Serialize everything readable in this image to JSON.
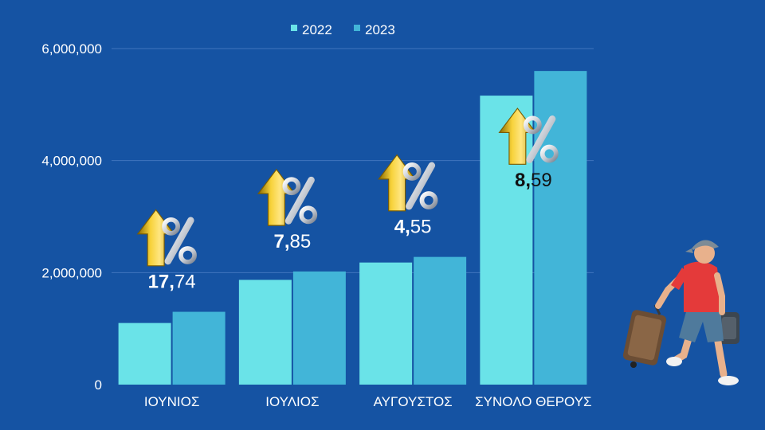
{
  "chart_data": {
    "type": "bar",
    "categories": [
      "ΙΟΥΝΙΟΣ",
      "ΙΟΥΛΙΟΣ",
      "ΑΥΓΟΥΣΤΟΣ",
      "ΣΥΝΟΛΟ ΘΕΡΟΥΣ"
    ],
    "series": [
      {
        "name": "2022",
        "values": [
          1100000,
          1870000,
          2180000,
          5160000
        ],
        "color": "#6ae3e8"
      },
      {
        "name": "2023",
        "values": [
          1300000,
          2020000,
          2280000,
          5600000
        ],
        "color": "#42b5d8"
      }
    ],
    "ylim": [
      0,
      6000000
    ],
    "yticks": [
      0,
      2000000,
      4000000,
      6000000
    ],
    "ytick_labels": [
      "0",
      "2,000,000",
      "4,000,000",
      "6,000,000"
    ],
    "grid": true,
    "legend": "top-center",
    "annotations": [
      {
        "category": "ΙΟΥΝΙΟΣ",
        "integer": "17,",
        "decimals": "74",
        "text_color": "#ffffff"
      },
      {
        "category": "ΙΟΥΛΙΟΣ",
        "integer": "7,",
        "decimals": "85",
        "text_color": "#ffffff"
      },
      {
        "category": "ΑΥΓΟΥΣΤΟΣ",
        "integer": "4,",
        "decimals": "55",
        "text_color": "#ffffff"
      },
      {
        "category": "ΣΥΝΟΛΟ ΘΕΡΟΥΣ",
        "integer": "8,",
        "decimals": "59",
        "text_color": "#111111"
      }
    ],
    "annotation_icon": "gold-arrow-up-percent-icon"
  },
  "colors": {
    "background": "#1553a3",
    "grid": "#3f74bd",
    "text": "#ffffff"
  },
  "illustration": {
    "icon": "traveler-with-suitcases-icon"
  }
}
